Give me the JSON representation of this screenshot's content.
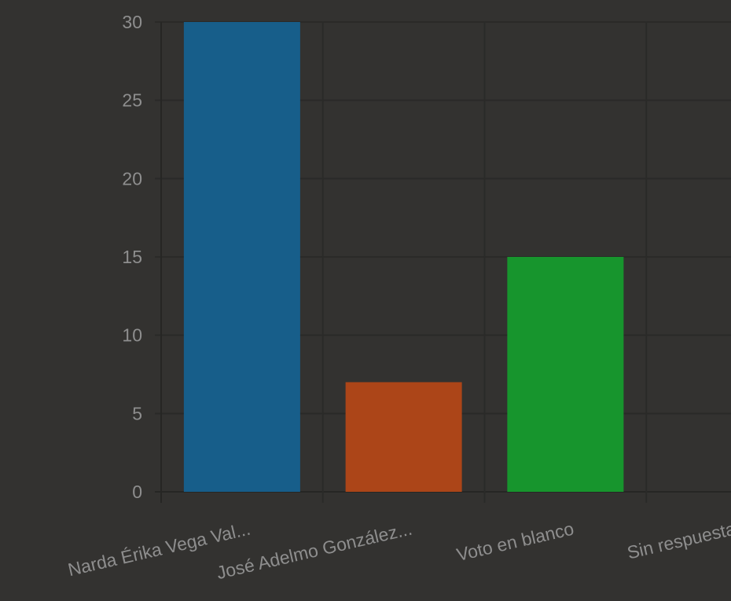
{
  "chart_data": {
    "type": "bar",
    "categories": [
      "Narda Érika Vega Val...",
      "José Adelmo González...",
      "Voto en blanco",
      "Sin respuesta"
    ],
    "values": [
      30,
      7,
      15,
      0
    ],
    "colors": [
      "#175e8a",
      "#ac4518",
      "#17952d",
      "#8a8a8a"
    ],
    "ylim": [
      0,
      30
    ],
    "yticks": [
      0,
      5,
      10,
      15,
      20,
      25,
      30
    ],
    "grid": true,
    "title": "",
    "xlabel": "",
    "ylabel": "",
    "background": "#333230",
    "tick_color": "#8e8e8e"
  }
}
